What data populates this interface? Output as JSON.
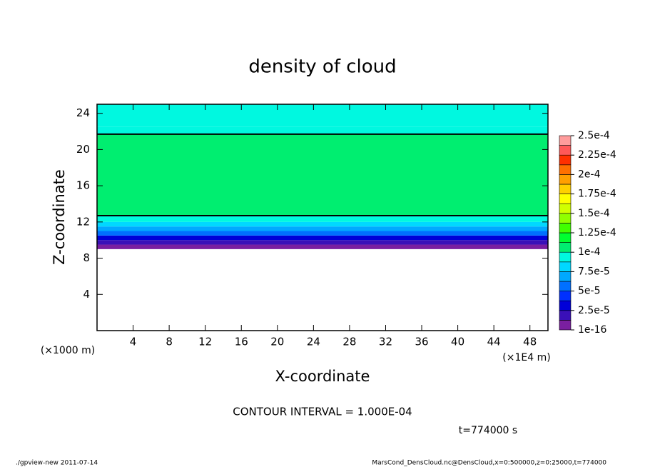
{
  "chart_data": {
    "type": "contour",
    "title": "density of cloud",
    "xlabel": "X-coordinate",
    "ylabel": "Z-coordinate",
    "xunit": "(×1E4 m)",
    "yunit": "(×1000 m)",
    "xlim": [
      0,
      50
    ],
    "ylim": [
      0,
      25
    ],
    "xticks": [
      4,
      8,
      12,
      16,
      20,
      24,
      28,
      32,
      36,
      40,
      44,
      48
    ],
    "yticks": [
      4,
      8,
      12,
      16,
      20,
      24
    ],
    "field": {
      "z_edges": [
        9,
        9.5,
        10,
        10.5,
        11,
        11.5,
        12,
        12.7,
        21.7,
        22.5,
        25
      ],
      "values": [
        5e-06,
        2e-05,
        3.5e-05,
        5.5e-05,
        7e-05,
        8e-05,
        9.5e-05,
        0.000105,
        9.5e-05,
        8.8e-05
      ]
    },
    "colorbar": {
      "levels": [
        {
          "value": 1e-16,
          "label": "1e-16"
        },
        {
          "value": 2.5e-05,
          "label": "2.5e-5"
        },
        {
          "value": 5e-05,
          "label": "5e-5"
        },
        {
          "value": 7.5e-05,
          "label": "7.5e-5"
        },
        {
          "value": 0.0001,
          "label": "1e-4"
        },
        {
          "value": 0.000125,
          "label": "1.25e-4"
        },
        {
          "value": 0.00015,
          "label": "1.5e-4"
        },
        {
          "value": 0.000175,
          "label": "1.75e-4"
        },
        {
          "value": 0.0002,
          "label": "2e-4"
        },
        {
          "value": 0.000225,
          "label": "2.25e-4"
        },
        {
          "value": 0.00025,
          "label": "2.5e-4"
        }
      ],
      "colors": [
        "#7a1fa0",
        "#3a10b8",
        "#0000d8",
        "#0030ff",
        "#0070ff",
        "#00a8ff",
        "#00d8ff",
        "#00f8e0",
        "#00ee70",
        "#00ff30",
        "#40ff00",
        "#90ff00",
        "#d0ff00",
        "#ffff00",
        "#ffd000",
        "#ffa000",
        "#ff7000",
        "#ff3000",
        "#ff5858",
        "#ff9c9c"
      ]
    },
    "contour_interval": "CONTOUR INTERVAL = 1.000E-04",
    "time": "t=774000 s"
  },
  "footer": {
    "left": "./gpview-new  2011-07-14",
    "right": "MarsCond_DensCloud.nc@DensCloud,x=0:500000,z=0:25000,t=774000"
  }
}
